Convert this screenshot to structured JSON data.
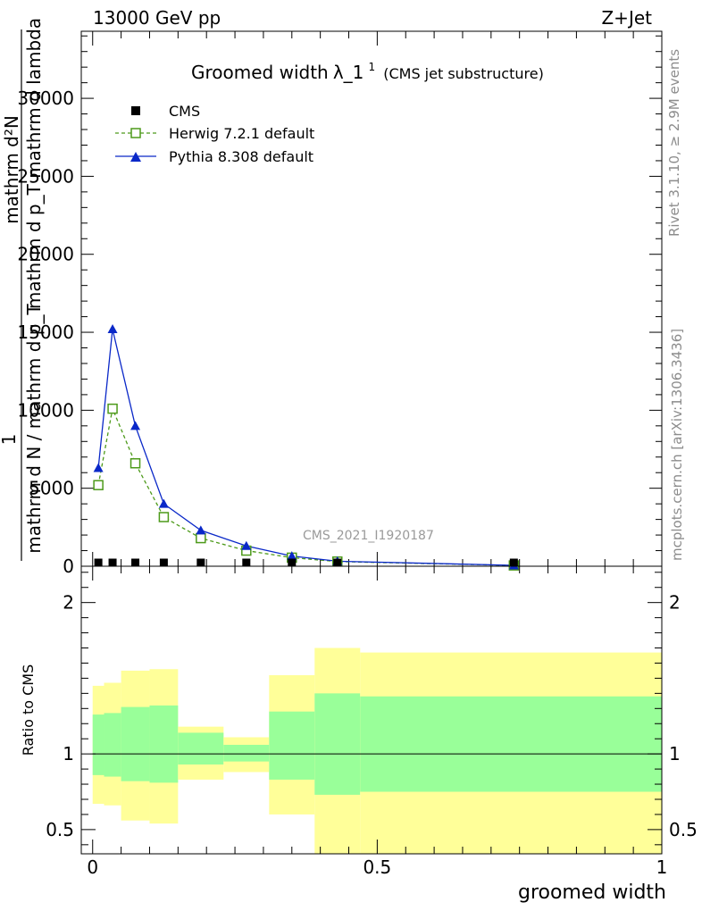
{
  "header": {
    "left": "13000 GeV pp",
    "right": "Z+Jet"
  },
  "side_labels": {
    "rivet": "Rivet 3.1.10, ≥ 2.9M events",
    "mcplots": "mcplots.cern.ch [arXiv:1306.3436]"
  },
  "watermark": "CMS_2021_I1920187",
  "chart_data": [
    {
      "type": "line",
      "title_main": "Groomed width",
      "title_symbol": "λ_1",
      "title_sup": "1",
      "title_note": "(CMS jet substructure)",
      "ylabel_numerator": "1",
      "ylabel_denominator": "mathrm d N / mathrm d p_T",
      "ylabel_line1": "mathrm d²N",
      "ylabel_line2": "mathrm d p_T mathrm d lambda",
      "xlim": [
        -0.02,
        1.0
      ],
      "ylim": [
        0,
        34300
      ],
      "yticks": [
        0,
        5000,
        10000,
        15000,
        20000,
        25000,
        30000
      ],
      "ytick_labels": [
        "0",
        "5000",
        "10000",
        "15000",
        "20000",
        "25000",
        "30000"
      ],
      "grid": false,
      "legend_position": "top-left",
      "series": [
        {
          "name": "CMS",
          "marker": "filled-square",
          "color": "#000000",
          "x": [
            0.01,
            0.035,
            0.075,
            0.125,
            0.19,
            0.27,
            0.35,
            0.43,
            0.74
          ],
          "y": [
            35,
            35,
            35,
            30,
            25,
            20,
            15,
            10,
            5
          ]
        },
        {
          "name": "Herwig 7.2.1 default",
          "marker": "open-square",
          "line": "dashed",
          "color": "#4d9a1a",
          "x": [
            0.01,
            0.035,
            0.075,
            0.125,
            0.19,
            0.27,
            0.35,
            0.43,
            0.74
          ],
          "y": [
            5200,
            10100,
            6600,
            3150,
            1800,
            1000,
            550,
            300,
            50
          ]
        },
        {
          "name": "Pythia 8.308 default",
          "marker": "filled-triangle",
          "line": "solid",
          "color": "#0a28c8",
          "x": [
            0.01,
            0.035,
            0.075,
            0.125,
            0.19,
            0.27,
            0.35,
            0.43,
            0.74
          ],
          "y": [
            6300,
            15200,
            9000,
            4000,
            2300,
            1300,
            650,
            320,
            55
          ]
        }
      ]
    },
    {
      "type": "area",
      "ylabel": "Ratio to CMS",
      "xlabel": "groomed width",
      "xlim": [
        -0.02,
        1.0
      ],
      "ylim": [
        0.34,
        2.24
      ],
      "xticks": [
        0,
        0.5,
        1
      ],
      "xtick_labels": [
        "0",
        "0.5",
        "1"
      ],
      "yticks": [
        0.5,
        1,
        2
      ],
      "ytick_labels": [
        "0.5",
        "1",
        "2"
      ],
      "reference_line": 1,
      "bins": [
        {
          "lo": 0.0,
          "hi": 0.02,
          "yellow": [
            0.67,
            1.45
          ],
          "green": [
            0.86,
            1.26
          ]
        },
        {
          "lo": 0.02,
          "hi": 0.05,
          "yellow": [
            0.66,
            1.47
          ],
          "green": [
            0.85,
            1.27
          ]
        },
        {
          "lo": 0.05,
          "hi": 0.1,
          "yellow": [
            0.56,
            1.55
          ],
          "green": [
            0.82,
            1.31
          ]
        },
        {
          "lo": 0.1,
          "hi": 0.15,
          "yellow": [
            0.54,
            1.56
          ],
          "green": [
            0.81,
            1.32
          ]
        },
        {
          "lo": 0.15,
          "hi": 0.23,
          "yellow": [
            0.83,
            1.18
          ],
          "green": [
            0.93,
            1.14
          ]
        },
        {
          "lo": 0.23,
          "hi": 0.31,
          "yellow": [
            0.88,
            1.11
          ],
          "green": [
            0.95,
            1.06
          ]
        },
        {
          "lo": 0.31,
          "hi": 0.39,
          "yellow": [
            0.6,
            1.52
          ],
          "green": [
            0.83,
            1.28
          ]
        },
        {
          "lo": 0.39,
          "hi": 0.47,
          "yellow": [
            0.34,
            1.7
          ],
          "green": [
            0.73,
            1.4
          ]
        },
        {
          "lo": 0.47,
          "hi": 1.0,
          "yellow": [
            0.34,
            1.67
          ],
          "green": [
            0.75,
            1.38
          ]
        }
      ],
      "band_colors": {
        "outer": "#ffff99",
        "inner": "#99ff99"
      }
    }
  ]
}
